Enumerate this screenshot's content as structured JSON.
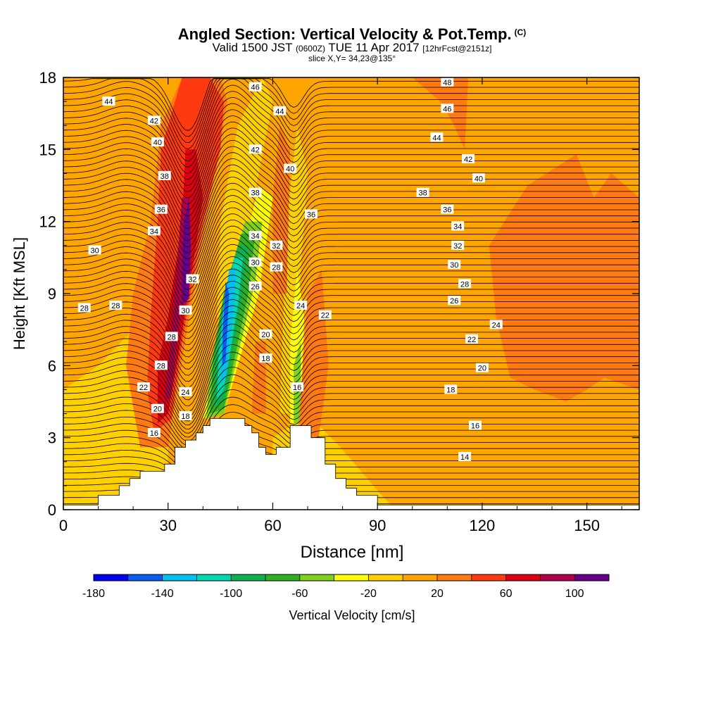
{
  "header": {
    "title": "Angled Section: Vertical Velocity & Pot.Temp.",
    "title_unit": "(C)",
    "valid_prefix": "Valid 1500 JST",
    "valid_z": "(0600Z)",
    "valid_date": "TUE 11 Apr 2017",
    "forecast": "[12hrFcst@2151z]",
    "slice": "slice X,Y= 34,23@135°"
  },
  "chart_data": {
    "type": "heatmap",
    "xlabel": "Distance [nm]",
    "ylabel": "Height [Kft MSL]",
    "xlim": [
      0,
      165
    ],
    "ylim": [
      0,
      18
    ],
    "x_ticks": [
      "0",
      "30",
      "60",
      "90",
      "120",
      "150"
    ],
    "y_ticks": [
      "0",
      "3",
      "6",
      "9",
      "12",
      "15",
      "18"
    ],
    "colorbar": {
      "label": "Vertical Velocity [cm/s]",
      "tick_labels": [
        "-180",
        "-140",
        "-100",
        "-60",
        "-20",
        "20",
        "60",
        "100"
      ],
      "levels": [
        -180,
        -160,
        -140,
        -120,
        -100,
        -80,
        -60,
        -40,
        -20,
        0,
        20,
        40,
        60,
        80,
        100,
        120
      ],
      "colors": [
        "#0000ee",
        "#0a5cf0",
        "#00c0f0",
        "#00d8b0",
        "#10b050",
        "#30b020",
        "#80d020",
        "#ffff00",
        "#ffd000",
        "#ffa500",
        "#ff7a10",
        "#ff3a10",
        "#dd0010",
        "#b0004a",
        "#66008a"
      ]
    },
    "terrain_profile": [
      [
        0,
        0.2
      ],
      [
        10,
        0.2
      ],
      [
        10,
        0.6
      ],
      [
        16,
        0.6
      ],
      [
        16,
        1.0
      ],
      [
        19,
        1.0
      ],
      [
        19,
        1.3
      ],
      [
        22,
        1.3
      ],
      [
        22,
        1.6
      ],
      [
        29,
        1.6
      ],
      [
        29,
        1.9
      ],
      [
        32,
        1.9
      ],
      [
        32,
        2.6
      ],
      [
        35,
        2.6
      ],
      [
        35,
        2.9
      ],
      [
        38,
        2.9
      ],
      [
        38,
        3.2
      ],
      [
        40,
        3.2
      ],
      [
        40,
        3.5
      ],
      [
        42,
        3.5
      ],
      [
        42,
        3.8
      ],
      [
        52,
        3.8
      ],
      [
        52,
        3.5
      ],
      [
        54,
        3.5
      ],
      [
        54,
        3.2
      ],
      [
        56,
        3.2
      ],
      [
        56,
        2.6
      ],
      [
        58,
        2.6
      ],
      [
        58,
        2.3
      ],
      [
        61,
        2.3
      ],
      [
        61,
        2.6
      ],
      [
        65,
        2.6
      ],
      [
        65,
        3.5
      ],
      [
        71,
        3.5
      ],
      [
        71,
        3.0
      ],
      [
        75,
        3.0
      ],
      [
        75,
        1.9
      ],
      [
        78,
        1.9
      ],
      [
        78,
        1.3
      ],
      [
        81,
        1.3
      ],
      [
        81,
        0.9
      ],
      [
        84,
        0.9
      ],
      [
        84,
        0.6
      ],
      [
        90,
        0.6
      ],
      [
        90,
        0.2
      ],
      [
        165,
        0.2
      ]
    ],
    "theta_contour_labels": [
      {
        "text": "44",
        "x": 13,
        "y": 17.0
      },
      {
        "text": "42",
        "x": 26,
        "y": 16.2
      },
      {
        "text": "40",
        "x": 27,
        "y": 15.3
      },
      {
        "text": "38",
        "x": 29,
        "y": 13.9
      },
      {
        "text": "36",
        "x": 28,
        "y": 12.5
      },
      {
        "text": "34",
        "x": 26,
        "y": 11.6
      },
      {
        "text": "30",
        "x": 9,
        "y": 10.8
      },
      {
        "text": "28",
        "x": 6,
        "y": 8.4
      },
      {
        "text": "28",
        "x": 15,
        "y": 8.5
      },
      {
        "text": "32",
        "x": 37,
        "y": 9.6
      },
      {
        "text": "30",
        "x": 35,
        "y": 8.3
      },
      {
        "text": "28",
        "x": 31,
        "y": 7.2
      },
      {
        "text": "28",
        "x": 28,
        "y": 6.0
      },
      {
        "text": "22",
        "x": 23,
        "y": 5.1
      },
      {
        "text": "20",
        "x": 27,
        "y": 4.2
      },
      {
        "text": "16",
        "x": 26,
        "y": 3.2
      },
      {
        "text": "24",
        "x": 35,
        "y": 4.9
      },
      {
        "text": "18",
        "x": 35,
        "y": 3.9
      },
      {
        "text": "46",
        "x": 55,
        "y": 17.6
      },
      {
        "text": "44",
        "x": 62,
        "y": 16.6
      },
      {
        "text": "42",
        "x": 55,
        "y": 15.0
      },
      {
        "text": "40",
        "x": 65,
        "y": 14.2
      },
      {
        "text": "38",
        "x": 55,
        "y": 13.2
      },
      {
        "text": "36",
        "x": 71,
        "y": 12.3
      },
      {
        "text": "34",
        "x": 55,
        "y": 11.4
      },
      {
        "text": "32",
        "x": 61,
        "y": 11.0
      },
      {
        "text": "30",
        "x": 55,
        "y": 10.3
      },
      {
        "text": "28",
        "x": 61,
        "y": 10.1
      },
      {
        "text": "26",
        "x": 55,
        "y": 9.3
      },
      {
        "text": "24",
        "x": 68,
        "y": 8.5
      },
      {
        "text": "22",
        "x": 75,
        "y": 8.1
      },
      {
        "text": "20",
        "x": 58,
        "y": 7.3
      },
      {
        "text": "18",
        "x": 58,
        "y": 6.3
      },
      {
        "text": "16",
        "x": 67,
        "y": 5.1
      },
      {
        "text": "48",
        "x": 110,
        "y": 17.8
      },
      {
        "text": "46",
        "x": 110,
        "y": 16.7
      },
      {
        "text": "44",
        "x": 107,
        "y": 15.5
      },
      {
        "text": "42",
        "x": 116,
        "y": 14.6
      },
      {
        "text": "40",
        "x": 119,
        "y": 13.8
      },
      {
        "text": "38",
        "x": 103,
        "y": 13.2
      },
      {
        "text": "36",
        "x": 110,
        "y": 12.5
      },
      {
        "text": "34",
        "x": 113,
        "y": 11.8
      },
      {
        "text": "32",
        "x": 113,
        "y": 11.0
      },
      {
        "text": "30",
        "x": 112,
        "y": 10.2
      },
      {
        "text": "28",
        "x": 115,
        "y": 9.4
      },
      {
        "text": "26",
        "x": 112,
        "y": 8.7
      },
      {
        "text": "24",
        "x": 124,
        "y": 7.7
      },
      {
        "text": "22",
        "x": 117,
        "y": 7.1
      },
      {
        "text": "20",
        "x": 120,
        "y": 5.9
      },
      {
        "text": "18",
        "x": 111,
        "y": 5.0
      },
      {
        "text": "16",
        "x": 118,
        "y": 3.5
      },
      {
        "text": "14",
        "x": 115,
        "y": 2.2
      }
    ],
    "velocity_regions": [
      {
        "level": 0,
        "points": [
          [
            0,
            0
          ],
          [
            165,
            0
          ],
          [
            165,
            18
          ],
          [
            0,
            18
          ]
        ]
      },
      {
        "level": -20,
        "points": [
          [
            0,
            0
          ],
          [
            30,
            0
          ],
          [
            30,
            6
          ],
          [
            20,
            7.5
          ],
          [
            10,
            6
          ],
          [
            0,
            5
          ]
        ]
      },
      {
        "level": -20,
        "points": [
          [
            3,
            0
          ],
          [
            12,
            0
          ],
          [
            14,
            4
          ],
          [
            8,
            5
          ],
          [
            3,
            3
          ]
        ]
      },
      {
        "level": -20,
        "points": [
          [
            60,
            0
          ],
          [
            95,
            0
          ],
          [
            90,
            0.8
          ],
          [
            80,
            2.5
          ],
          [
            70,
            4
          ],
          [
            60,
            3
          ]
        ]
      },
      {
        "level": -20,
        "points": [
          [
            44,
            8
          ],
          [
            50,
            8
          ],
          [
            54,
            12.5
          ],
          [
            60,
            17
          ],
          [
            57,
            18
          ],
          [
            50,
            16
          ],
          [
            45,
            12
          ]
        ]
      },
      {
        "level": -20,
        "points": [
          [
            62,
            4
          ],
          [
            66,
            4
          ],
          [
            68,
            10
          ],
          [
            70,
            14
          ],
          [
            67,
            16
          ],
          [
            64,
            12
          ]
        ]
      },
      {
        "level": -40,
        "points": [
          [
            40,
            3.8
          ],
          [
            46,
            4
          ],
          [
            56,
            9
          ],
          [
            60,
            13
          ],
          [
            56,
            13.5
          ],
          [
            50,
            10
          ],
          [
            43,
            6
          ]
        ]
      },
      {
        "level": -40,
        "points": [
          [
            65,
            3.6
          ],
          [
            68,
            3.6
          ],
          [
            69,
            8
          ],
          [
            67,
            10
          ],
          [
            65,
            7
          ]
        ]
      },
      {
        "level": -60,
        "points": [
          [
            41,
            3.8
          ],
          [
            46,
            4
          ],
          [
            55,
            9.5
          ],
          [
            57,
            12
          ],
          [
            52,
            12
          ],
          [
            47,
            9
          ],
          [
            42,
            6
          ]
        ]
      },
      {
        "level": -60,
        "points": [
          [
            66,
            3.6
          ],
          [
            68,
            3.6
          ],
          [
            68,
            7
          ],
          [
            66,
            6
          ]
        ]
      },
      {
        "level": -80,
        "points": [
          [
            42,
            4
          ],
          [
            46,
            4.2
          ],
          [
            53,
            9
          ],
          [
            55,
            11.5
          ],
          [
            51,
            11.5
          ],
          [
            46,
            9
          ],
          [
            43,
            6.5
          ]
        ]
      },
      {
        "level": -100,
        "points": [
          [
            43,
            4.3
          ],
          [
            46,
            4.5
          ],
          [
            51,
            8.5
          ],
          [
            53,
            11
          ],
          [
            50,
            11
          ],
          [
            46,
            9
          ],
          [
            43.5,
            6.5
          ]
        ]
      },
      {
        "level": -120,
        "points": [
          [
            44,
            4.6
          ],
          [
            46,
            5
          ],
          [
            50,
            8.5
          ],
          [
            51.5,
            10.5
          ],
          [
            49,
            10.5
          ],
          [
            46,
            8.5
          ],
          [
            44.5,
            6.5
          ]
        ]
      },
      {
        "level": -140,
        "points": [
          [
            45,
            5.2
          ],
          [
            46.5,
            5.5
          ],
          [
            49,
            8.5
          ],
          [
            49.5,
            10
          ],
          [
            47.5,
            10
          ],
          [
            45.5,
            8
          ]
        ]
      },
      {
        "level": -160,
        "points": [
          [
            45.5,
            6
          ],
          [
            46.5,
            6.2
          ],
          [
            47.5,
            9
          ],
          [
            46.5,
            9.5
          ],
          [
            45.7,
            7.5
          ]
        ]
      },
      {
        "level": 20,
        "points": [
          [
            22,
            2.6
          ],
          [
            30,
            2.6
          ],
          [
            36,
            8
          ],
          [
            42,
            13
          ],
          [
            47,
            17
          ],
          [
            45,
            18
          ],
          [
            34,
            18
          ],
          [
            28,
            16
          ],
          [
            25,
            12
          ],
          [
            20,
            9
          ],
          [
            18,
            6
          ]
        ]
      },
      {
        "level": 20,
        "points": [
          [
            67,
            2.6
          ],
          [
            72,
            1.8
          ],
          [
            76,
            6
          ],
          [
            74,
            10
          ],
          [
            70,
            9
          ]
        ]
      },
      {
        "level": 20,
        "points": [
          [
            54,
            4
          ],
          [
            58,
            4
          ],
          [
            58,
            7
          ],
          [
            55,
            7
          ]
        ]
      },
      {
        "level": 20,
        "points": [
          [
            60,
            9
          ],
          [
            64,
            9
          ],
          [
            65,
            15
          ],
          [
            62,
            16
          ],
          [
            60,
            13
          ]
        ]
      },
      {
        "level": 20,
        "points": [
          [
            100,
            18
          ],
          [
            116,
            18
          ],
          [
            115,
            15
          ],
          [
            112,
            16
          ],
          [
            108,
            17
          ]
        ]
      },
      {
        "level": 20,
        "points": [
          [
            122,
            11
          ],
          [
            133,
            13.5
          ],
          [
            147,
            14.8
          ],
          [
            152,
            13
          ],
          [
            157,
            14
          ],
          [
            165,
            13
          ],
          [
            165,
            5
          ],
          [
            155,
            5.5
          ],
          [
            150,
            5
          ],
          [
            144,
            4.5
          ],
          [
            135,
            5
          ],
          [
            128,
            5.5
          ],
          [
            124,
            8
          ]
        ]
      },
      {
        "level": 40,
        "points": [
          [
            26,
            3.2
          ],
          [
            31,
            3.8
          ],
          [
            34,
            7
          ],
          [
            40,
            12
          ],
          [
            45,
            15
          ],
          [
            46,
            17
          ],
          [
            42,
            18
          ],
          [
            34,
            18
          ],
          [
            28,
            15
          ],
          [
            27,
            12
          ],
          [
            25,
            8
          ],
          [
            24,
            5
          ]
        ]
      },
      {
        "level": 60,
        "points": [
          [
            27,
            3.6
          ],
          [
            30,
            4
          ],
          [
            33,
            6.5
          ],
          [
            38,
            11
          ],
          [
            40,
            13
          ],
          [
            38,
            15
          ],
          [
            35,
            15
          ],
          [
            34,
            12
          ],
          [
            30,
            8
          ],
          [
            27,
            6
          ]
        ]
      },
      {
        "level": 80,
        "points": [
          [
            29,
            4.5
          ],
          [
            31,
            4.8
          ],
          [
            35,
            10
          ],
          [
            36,
            13
          ],
          [
            34,
            13
          ],
          [
            32,
            9
          ]
        ]
      },
      {
        "level": 100,
        "points": [
          [
            34,
            8.5
          ],
          [
            36,
            8.8
          ],
          [
            36.5,
            11
          ],
          [
            36,
            13
          ],
          [
            34.5,
            12
          ],
          [
            34,
            10
          ]
        ]
      }
    ]
  }
}
